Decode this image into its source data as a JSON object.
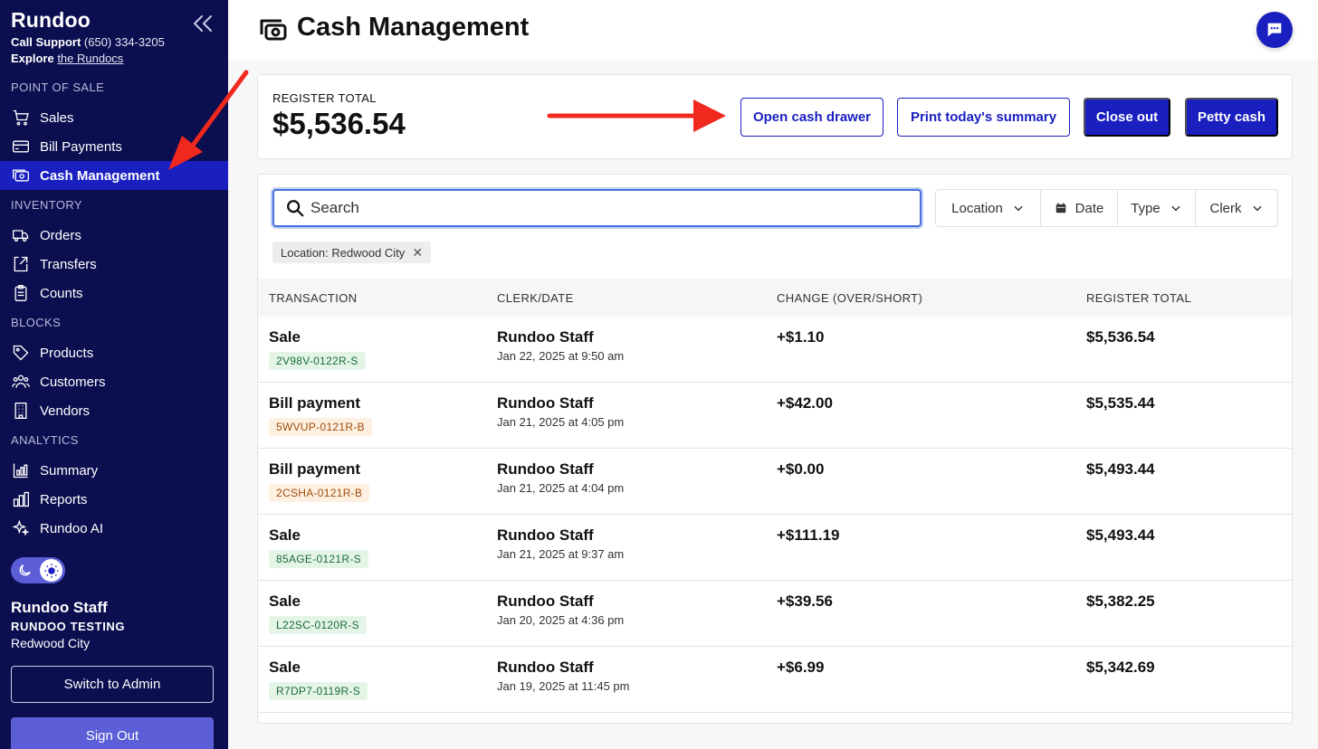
{
  "sidebar": {
    "brand": "Rundoo",
    "support_label": "Call Support",
    "support_phone": "(650) 334-3205",
    "explore_label": "Explore",
    "explore_link": "the Rundocs",
    "sections": {
      "pos": "POINT OF SALE",
      "inventory": "INVENTORY",
      "blocks": "BLOCKS",
      "analytics": "ANALYTICS"
    },
    "items": {
      "sales": "Sales",
      "bill_payments": "Bill Payments",
      "cash_management": "Cash Management",
      "orders": "Orders",
      "transfers": "Transfers",
      "counts": "Counts",
      "products": "Products",
      "customers": "Customers",
      "vendors": "Vendors",
      "summary": "Summary",
      "reports": "Reports",
      "rundoo_ai": "Rundoo AI"
    },
    "user": {
      "name": "Rundoo Staff",
      "org": "RUNDOO TESTING",
      "location": "Redwood City"
    },
    "switch_admin": "Switch to Admin",
    "sign_out": "Sign Out"
  },
  "header": {
    "title": "Cash Management"
  },
  "register": {
    "label": "REGISTER TOTAL",
    "value": "$5,536.54",
    "buttons": {
      "open_drawer": "Open cash drawer",
      "print_summary": "Print today's summary",
      "close_out": "Close out",
      "petty_cash": "Petty cash"
    }
  },
  "search": {
    "placeholder": "Search",
    "value": ""
  },
  "filters": {
    "location": "Location",
    "date": "Date",
    "type": "Type",
    "clerk": "Clerk"
  },
  "active_filter": "Location: Redwood City",
  "table": {
    "headers": {
      "transaction": "TRANSACTION",
      "clerk_date": "CLERK/DATE",
      "change": "CHANGE (OVER/SHORT)",
      "register_total": "REGISTER TOTAL"
    },
    "rows": [
      {
        "type": "Sale",
        "code": "2V98V-0122R-S",
        "kind": "sale",
        "clerk": "Rundoo Staff",
        "date": "Jan 22, 2025 at 9:50 am",
        "change": "+$1.10",
        "total": "$5,536.54"
      },
      {
        "type": "Bill payment",
        "code": "5WVUP-0121R-B",
        "kind": "bill",
        "clerk": "Rundoo Staff",
        "date": "Jan 21, 2025 at 4:05 pm",
        "change": "+$42.00",
        "total": "$5,535.44"
      },
      {
        "type": "Bill payment",
        "code": "2CSHA-0121R-B",
        "kind": "bill",
        "clerk": "Rundoo Staff",
        "date": "Jan 21, 2025 at 4:04 pm",
        "change": "+$0.00",
        "total": "$5,493.44"
      },
      {
        "type": "Sale",
        "code": "85AGE-0121R-S",
        "kind": "sale",
        "clerk": "Rundoo Staff",
        "date": "Jan 21, 2025 at 9:37 am",
        "change": "+$111.19",
        "total": "$5,493.44"
      },
      {
        "type": "Sale",
        "code": "L22SC-0120R-S",
        "kind": "sale",
        "clerk": "Rundoo Staff",
        "date": "Jan 20, 2025 at 4:36 pm",
        "change": "+$39.56",
        "total": "$5,382.25"
      },
      {
        "type": "Sale",
        "code": "R7DP7-0119R-S",
        "kind": "sale",
        "clerk": "Rundoo Staff",
        "date": "Jan 19, 2025 at 11:45 pm",
        "change": "+$6.99",
        "total": "$5,342.69"
      }
    ]
  },
  "colors": {
    "sidebar_bg": "#0b0e4f",
    "accent": "#1a1fbf",
    "annotation_arrow": "#f0281e"
  }
}
